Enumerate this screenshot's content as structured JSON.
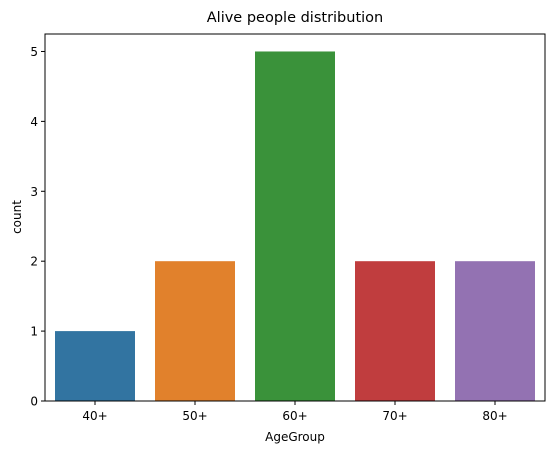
{
  "chart_data": {
    "type": "bar",
    "title": "Alive people distribution",
    "xlabel": "AgeGroup",
    "ylabel": "count",
    "categories": [
      "40+",
      "50+",
      "60+",
      "70+",
      "80+"
    ],
    "values": [
      1,
      2,
      5,
      2,
      2
    ],
    "colors": [
      "#3274a1",
      "#e1812c",
      "#3a923a",
      "#c03d3e",
      "#9372b2"
    ],
    "ylim": [
      0,
      5.25
    ],
    "yticks": [
      "0",
      "1",
      "2",
      "3",
      "4",
      "5"
    ],
    "grid": false,
    "legend": "none"
  }
}
